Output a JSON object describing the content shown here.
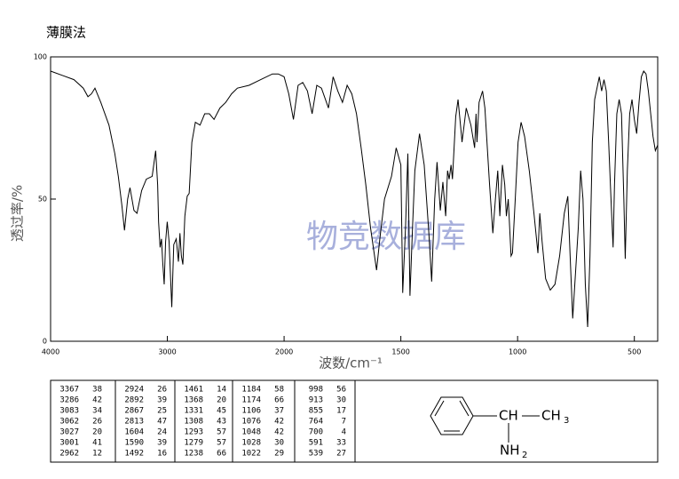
{
  "title": "薄膜法",
  "chart_data": {
    "type": "line",
    "xlabel": "波数/cm⁻¹",
    "ylabel": "透过率/%",
    "watermark": "物竞数据库",
    "color": "#000000",
    "xlim": [
      4000,
      400
    ],
    "ylim": [
      0,
      100
    ],
    "x_scale_change": 2000,
    "xticks": [
      4000,
      3000,
      2000,
      1500,
      1000,
      500
    ],
    "yticks": [
      0,
      50,
      100
    ],
    "x": [
      4000,
      3900,
      3800,
      3720,
      3680,
      3650,
      3620,
      3570,
      3500,
      3450,
      3420,
      3390,
      3367,
      3340,
      3320,
      3286,
      3260,
      3220,
      3180,
      3130,
      3100,
      3083,
      3075,
      3062,
      3050,
      3040,
      3027,
      3015,
      3001,
      2985,
      2962,
      2945,
      2924,
      2905,
      2892,
      2880,
      2867,
      2850,
      2830,
      2813,
      2790,
      2760,
      2720,
      2680,
      2640,
      2600,
      2550,
      2500,
      2450,
      2400,
      2300,
      2200,
      2100,
      2050,
      2000,
      1980,
      1960,
      1940,
      1920,
      1900,
      1880,
      1860,
      1840,
      1810,
      1790,
      1770,
      1750,
      1730,
      1710,
      1690,
      1670,
      1650,
      1630,
      1604,
      1590,
      1570,
      1540,
      1520,
      1500,
      1492,
      1480,
      1470,
      1461,
      1450,
      1440,
      1420,
      1400,
      1380,
      1368,
      1355,
      1345,
      1331,
      1320,
      1308,
      1300,
      1293,
      1285,
      1279,
      1265,
      1255,
      1240,
      1238,
      1220,
      1200,
      1184,
      1178,
      1174,
      1165,
      1150,
      1140,
      1120,
      1106,
      1095,
      1085,
      1076,
      1065,
      1055,
      1048,
      1040,
      1028,
      1022,
      1010,
      998,
      985,
      970,
      950,
      930,
      913,
      905,
      895,
      880,
      860,
      840,
      820,
      800,
      785,
      775,
      764,
      755,
      740,
      730,
      720,
      710,
      700,
      690,
      680,
      670,
      650,
      640,
      630,
      620,
      610,
      600,
      591,
      585,
      575,
      565,
      555,
      545,
      539,
      530,
      520,
      510,
      500,
      490,
      480,
      470,
      460,
      450,
      440,
      430,
      420,
      410,
      400
    ],
    "values": [
      95,
      93.5,
      92,
      89,
      86,
      87,
      89,
      84,
      76,
      66,
      58,
      48,
      39,
      50,
      54,
      46,
      45,
      53,
      57,
      58,
      67,
      55,
      42,
      33,
      36,
      28,
      20,
      35,
      42,
      35,
      12,
      34,
      36,
      28,
      38,
      30,
      27,
      44,
      51,
      52,
      70,
      77,
      76,
      80,
      80,
      78,
      82,
      84,
      87,
      89,
      90,
      92,
      94,
      94,
      93,
      87,
      78,
      90,
      91,
      88,
      80,
      90,
      89,
      82,
      93,
      88,
      84,
      90,
      87,
      80,
      68,
      55,
      40,
      25,
      36,
      50,
      58,
      68,
      62,
      17,
      40,
      66,
      16,
      40,
      60,
      73,
      62,
      38,
      21,
      50,
      63,
      46,
      56,
      44,
      60,
      57,
      62,
      57,
      79,
      85,
      72,
      70,
      82,
      76,
      68,
      80,
      70,
      84,
      88,
      82,
      55,
      38,
      50,
      60,
      44,
      62,
      55,
      44,
      50,
      30,
      31,
      50,
      70,
      77,
      72,
      60,
      45,
      31,
      45,
      35,
      22,
      18,
      20,
      30,
      45,
      51,
      30,
      8,
      20,
      40,
      60,
      50,
      20,
      5,
      30,
      70,
      85,
      93,
      88,
      92,
      88,
      70,
      50,
      33,
      55,
      80,
      85,
      80,
      50,
      29,
      60,
      80,
      85,
      78,
      73,
      84,
      93,
      95,
      94,
      88,
      80,
      72,
      67,
      69
    ]
  },
  "table": {
    "columns": [
      [
        [
          "3367",
          "38"
        ],
        [
          "3286",
          "42"
        ],
        [
          "3083",
          "34"
        ],
        [
          "3062",
          "26"
        ],
        [
          "3027",
          "20"
        ],
        [
          "3001",
          "41"
        ],
        [
          "2962",
          "12"
        ]
      ],
      [
        [
          "2924",
          "26"
        ],
        [
          "2892",
          "39"
        ],
        [
          "2867",
          "25"
        ],
        [
          "2813",
          "47"
        ],
        [
          "1604",
          "24"
        ],
        [
          "1590",
          "39"
        ],
        [
          "1492",
          "16"
        ]
      ],
      [
        [
          "1461",
          "14"
        ],
        [
          "1368",
          "20"
        ],
        [
          "1331",
          "45"
        ],
        [
          "1308",
          "43"
        ],
        [
          "1293",
          "57"
        ],
        [
          "1279",
          "57"
        ],
        [
          "1238",
          "66"
        ]
      ],
      [
        [
          "1184",
          "58"
        ],
        [
          "1174",
          "66"
        ],
        [
          "1106",
          "37"
        ],
        [
          "1076",
          "42"
        ],
        [
          "1048",
          "42"
        ],
        [
          "1028",
          "30"
        ],
        [
          "1022",
          "29"
        ]
      ],
      [
        [
          "998",
          "56"
        ],
        [
          "913",
          "30"
        ],
        [
          "855",
          "17"
        ],
        [
          "764",
          "7"
        ],
        [
          "700",
          "4"
        ],
        [
          "591",
          "33"
        ],
        [
          "539",
          "27"
        ]
      ]
    ]
  },
  "structure": {
    "labels": [
      "CH",
      "CH",
      "3",
      "NH",
      "2"
    ]
  }
}
